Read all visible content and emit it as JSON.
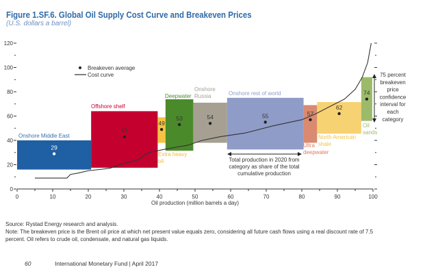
{
  "title": "Figure 1.SF.6.  Global Oil Supply Cost Curve and Breakeven Prices",
  "subtitle": "(U.S. dollars a barrel)",
  "chart_data": {
    "type": "bar",
    "xlabel": "Oil production (million barrels a day)",
    "ylabel": "",
    "xlim": [
      0,
      100
    ],
    "ylim": [
      0,
      120
    ],
    "xticks": [
      "0",
      "10",
      "20",
      "30",
      "40",
      "50",
      "60",
      "70",
      "80",
      "90",
      "100"
    ],
    "yticks": [
      "0",
      "20",
      "40",
      "60",
      "80",
      "100",
      "120"
    ],
    "legend": {
      "placement": "top-left",
      "items": [
        "Breakeven average",
        "Cost curve"
      ]
    },
    "categories": [
      {
        "name": "Onshore Middle East",
        "x0": 0,
        "x1": 20.8,
        "low": 16,
        "high": 40,
        "breakeven": 29,
        "color": "#1f5fa3"
      },
      {
        "name": "Offshore shelf",
        "x0": 20.8,
        "x1": 39.5,
        "low": 17.5,
        "high": 64,
        "breakeven": 43,
        "color": "#c4002f"
      },
      {
        "name": "Extra heavy oil",
        "x0": 39.5,
        "x1": 41.7,
        "low": 38,
        "high": 59,
        "breakeven": 49,
        "color": "#f5c342"
      },
      {
        "name": "Deepwater",
        "x0": 41.7,
        "x1": 49.5,
        "low": 31.5,
        "high": 73,
        "breakeven": 53,
        "color": "#4b8a2a"
      },
      {
        "name": "Onshore Russia",
        "x0": 49.5,
        "x1": 59,
        "low": 38,
        "high": 71,
        "breakeven": 54,
        "color": "#a5a092"
      },
      {
        "name": "Onshore rest of world",
        "x0": 59,
        "x1": 80.5,
        "low": 32.5,
        "high": 75,
        "breakeven": 55,
        "color": "#8f9cc8"
      },
      {
        "name": "Ultra deepwater",
        "x0": 80.5,
        "x1": 84.3,
        "low": 38,
        "high": 69,
        "breakeven": 57,
        "color": "#d98a70"
      },
      {
        "name": "North American shale",
        "x0": 84.3,
        "x1": 96.7,
        "low": 45.5,
        "high": 71.5,
        "breakeven": 62,
        "color": "#f7d272"
      },
      {
        "name": "Oil sands",
        "x0": 96.7,
        "x1": 99.8,
        "low": 56,
        "high": 92,
        "breakeven": 74,
        "color": "#9cbb6a"
      }
    ],
    "cost_curve": {
      "x": [
        5,
        14,
        15,
        17,
        20,
        26,
        30,
        34,
        37,
        42,
        48,
        52,
        57,
        64,
        72,
        80,
        84,
        88,
        92,
        95,
        97,
        98.5,
        99.5
      ],
      "y": [
        9,
        9,
        12,
        13,
        15,
        17,
        21,
        24,
        30,
        33,
        36,
        40,
        43,
        46,
        52,
        57,
        62,
        68,
        74,
        82,
        92,
        104,
        120
      ]
    },
    "annotations": {
      "interval": "75 percent breakeven price confidence interval for each category",
      "width": "Total production in 2020 from category as share of the total cumulative production"
    }
  },
  "source": "Source: Rystad Energy research and analysis.",
  "note": "Note: The breakeven price is the Brent oil price at which net present value equals zero, considering all future cash flows using a real discount rate of 7.5 percent. Oil refers to crude oil, condensate, and natural gas liquids.",
  "footer": {
    "page": "60",
    "publisher": "International Monetary Fund | April 2017"
  }
}
